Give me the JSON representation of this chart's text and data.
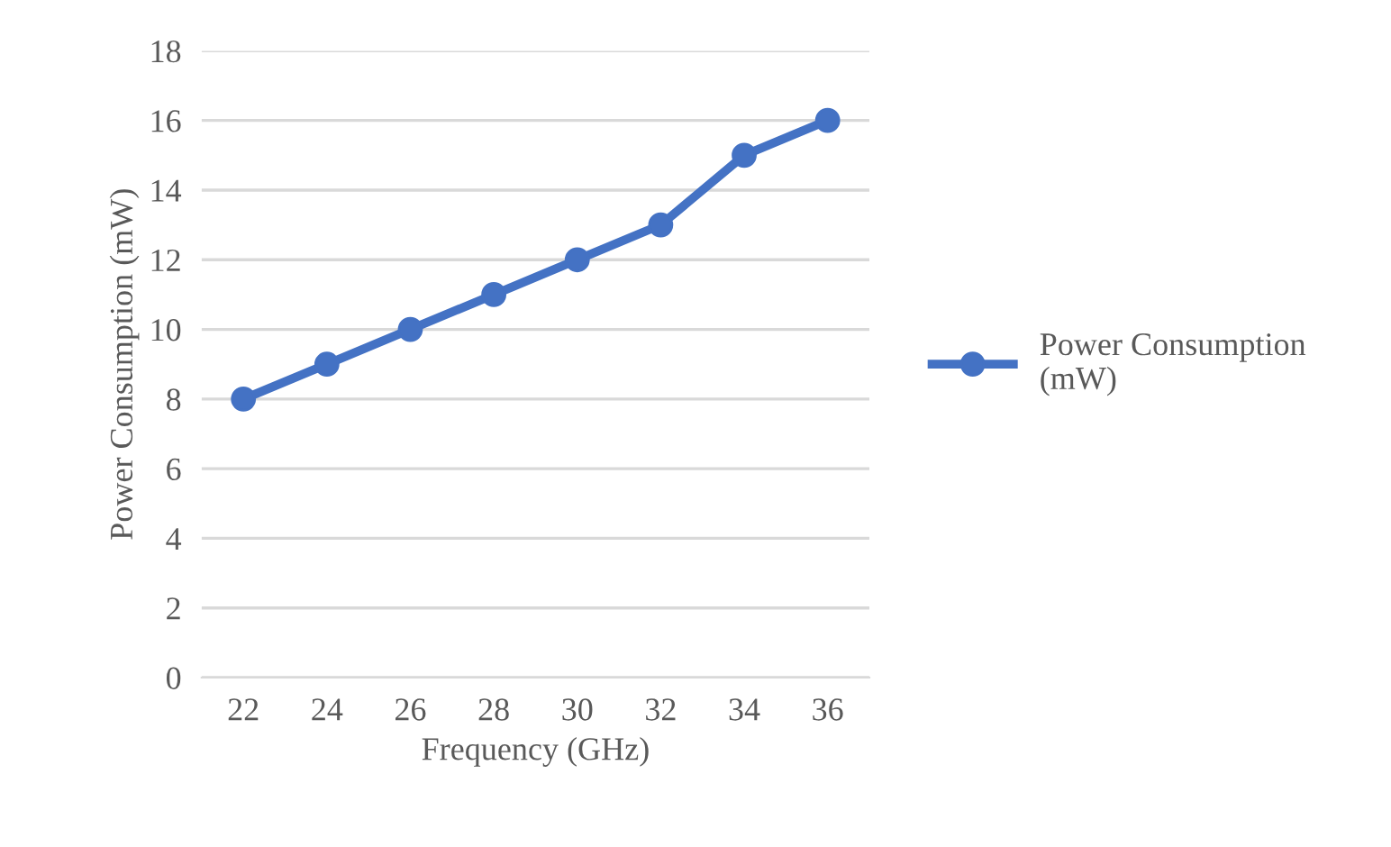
{
  "chart_data": {
    "type": "line",
    "xlabel": "Frequency (GHz)",
    "ylabel": "Power Consumption (mW)",
    "categories": [
      "22",
      "24",
      "26",
      "28",
      "30",
      "32",
      "34",
      "36"
    ],
    "series": [
      {
        "name": "Power Consumption\n(mW)",
        "color": "#4472c4",
        "values": [
          8,
          9,
          10,
          11,
          12,
          13,
          15,
          16
        ]
      }
    ],
    "ylim": [
      0,
      18
    ],
    "yticks": [
      0,
      2,
      4,
      6,
      8,
      10,
      12,
      14,
      16,
      18
    ],
    "grid": "y",
    "legend": "right",
    "marker": "circle",
    "line_style": "solid"
  }
}
